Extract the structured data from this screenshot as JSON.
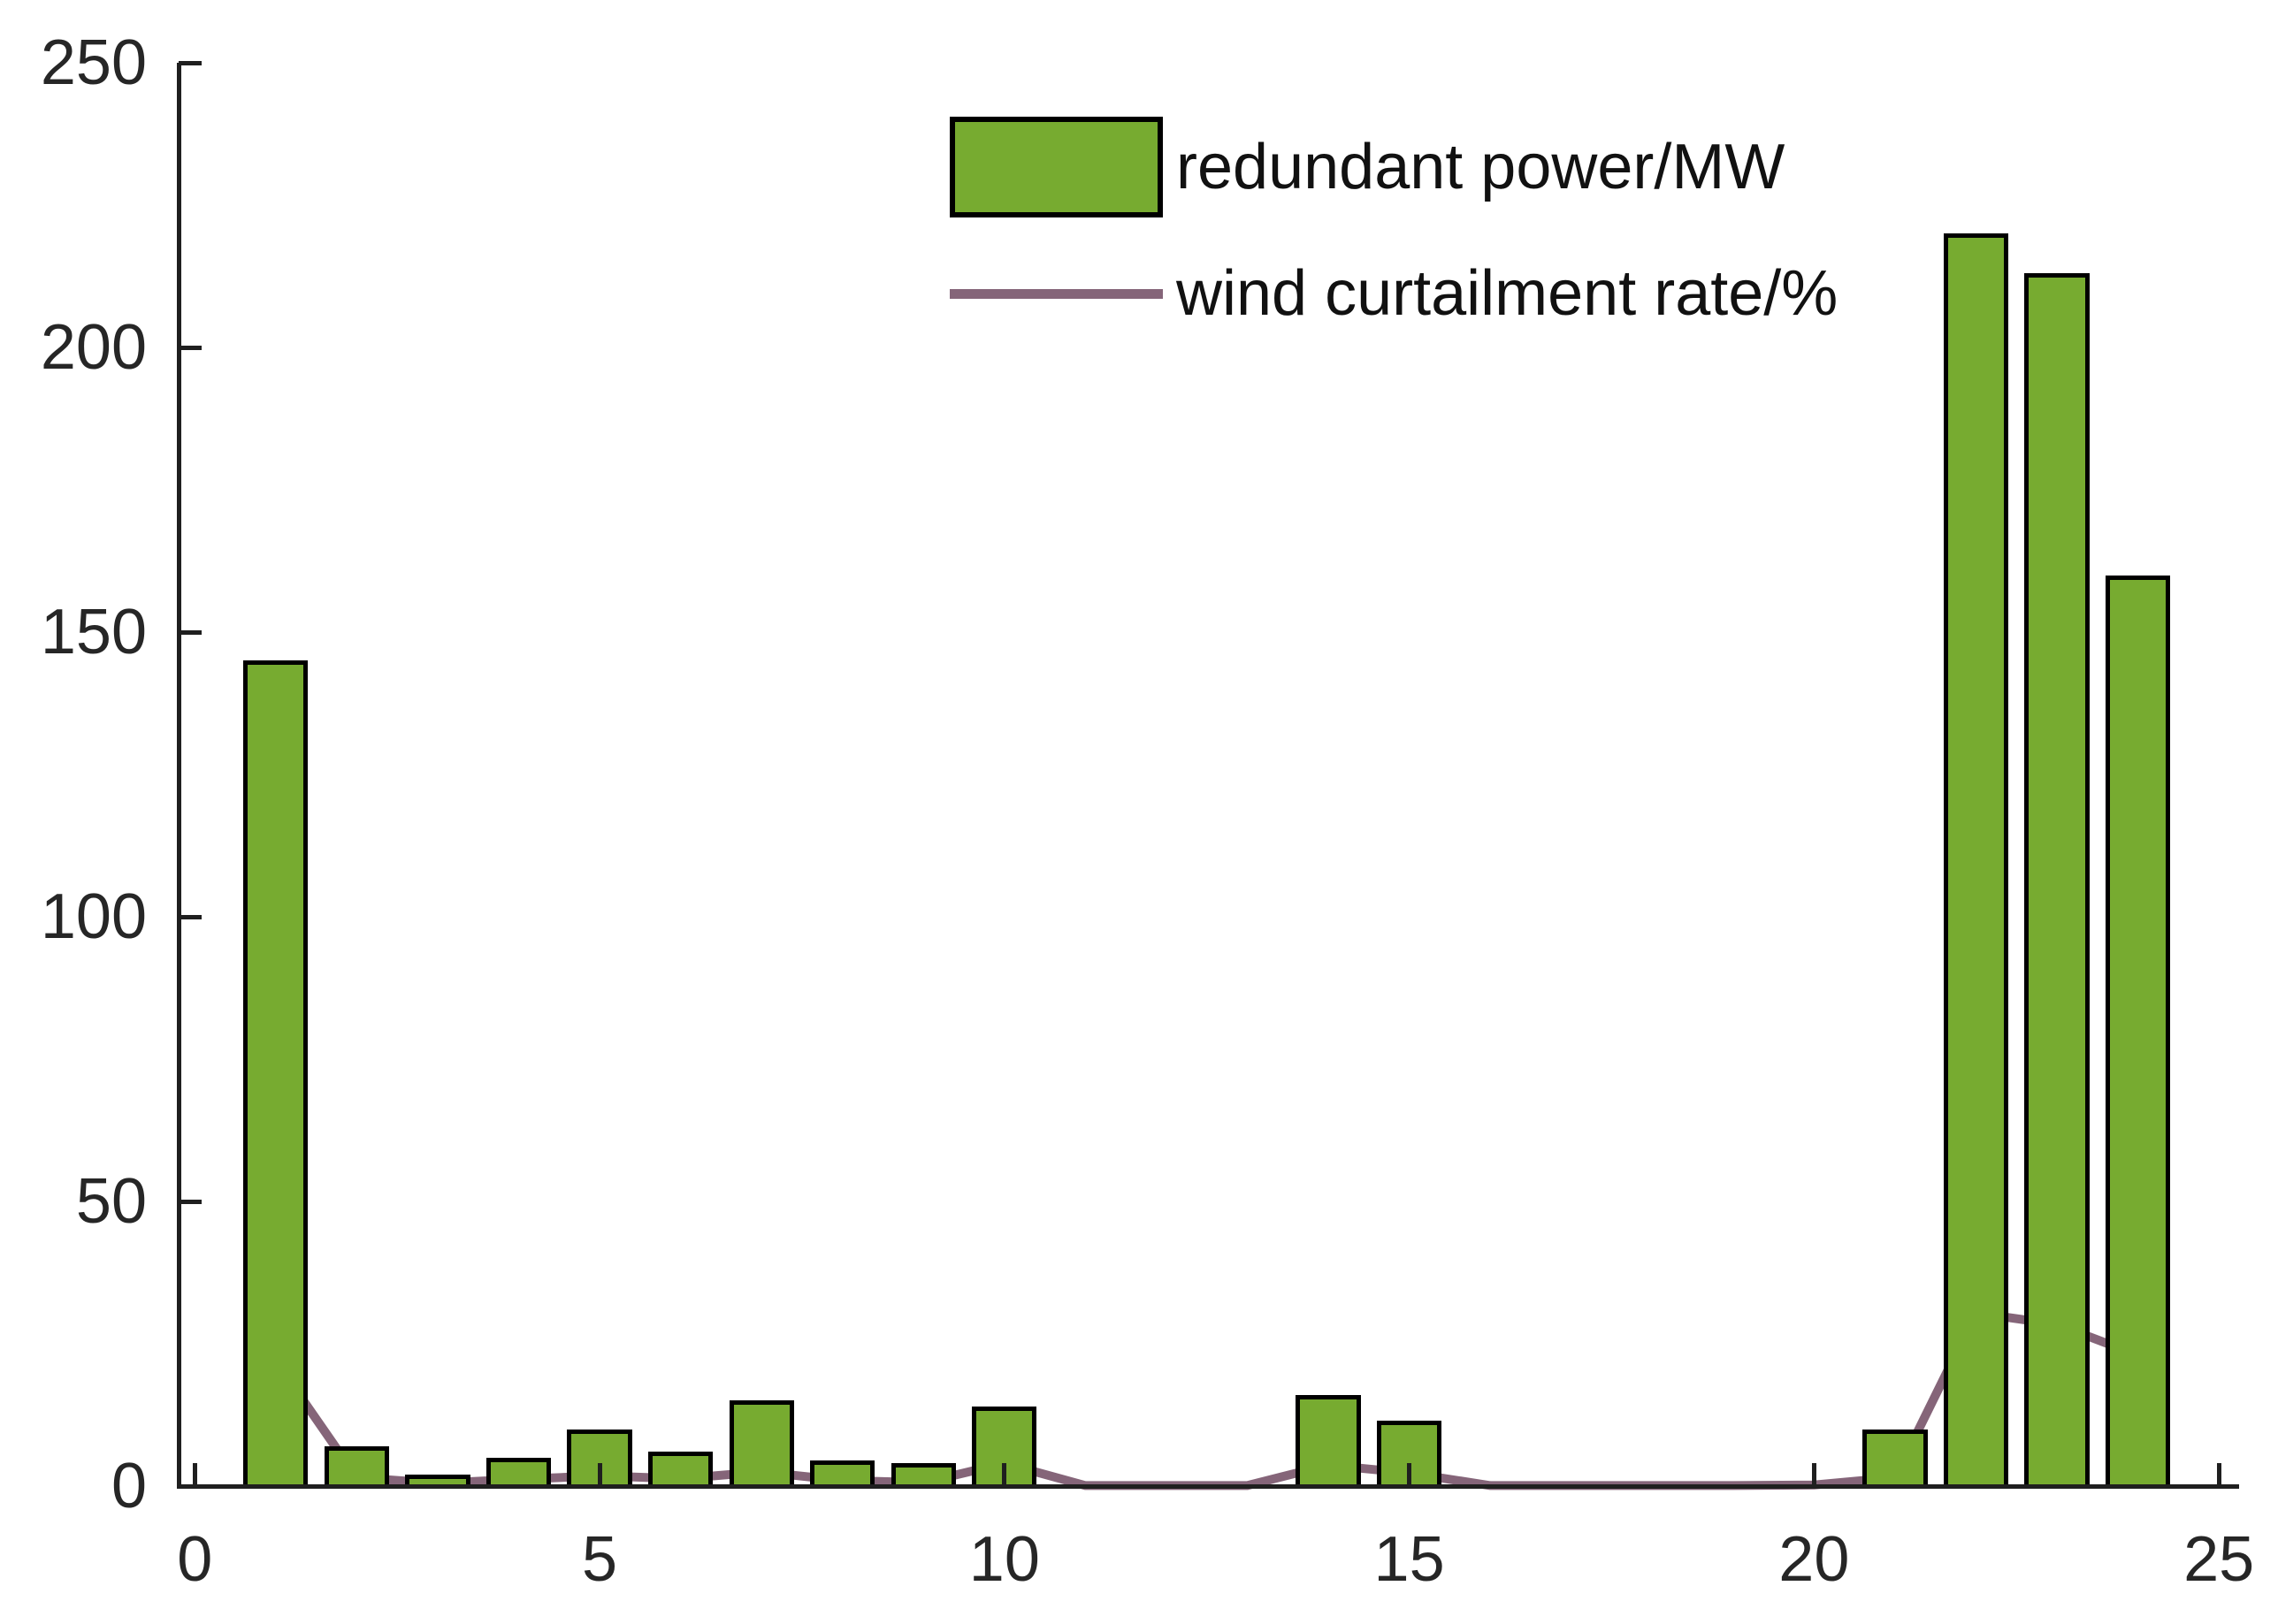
{
  "chart_data": {
    "type": "bar",
    "title": "",
    "xlabel": "",
    "ylabel": "",
    "grid": false,
    "x": [
      1,
      2,
      3,
      4,
      5,
      6,
      7,
      8,
      9,
      10,
      11,
      12,
      13,
      14,
      15,
      16,
      17,
      18,
      19,
      20,
      21,
      22,
      23,
      24
    ],
    "series": [
      {
        "name": "redundant power/MW",
        "type": "bar",
        "color": "#77ab30",
        "edge_color": "#000000",
        "bar_width": 0.8,
        "values": [
          145,
          7,
          2,
          5,
          10,
          6,
          15,
          4.5,
          4,
          14,
          0,
          0,
          0,
          16,
          11.5,
          0,
          0,
          0,
          0,
          0,
          10,
          220,
          213,
          160
        ]
      },
      {
        "name": "wind curtailment rate/%",
        "type": "line",
        "color": "#856579",
        "line_width": 10,
        "values": [
          22,
          1.5,
          0.5,
          1.2,
          1.8,
          1.3,
          2.5,
          1.0,
          0.6,
          4.0,
          0.1,
          0.1,
          0.1,
          3.7,
          2.3,
          0.1,
          0.1,
          0.1,
          0.1,
          0.2,
          1.5,
          30.4,
          28.4,
          23.0
        ]
      }
    ],
    "xticks": [
      0,
      5,
      10,
      15,
      20,
      25
    ],
    "yticks": [
      0,
      50,
      100,
      150,
      200,
      250
    ],
    "xlim": [
      -0.2,
      25.25
    ],
    "ylim": [
      0,
      250
    ],
    "legend_position": "upper center",
    "legend_box": false,
    "axis_color": "#1f1f1f",
    "tick_label_color": "#262626",
    "background_color": "#ffffff"
  }
}
